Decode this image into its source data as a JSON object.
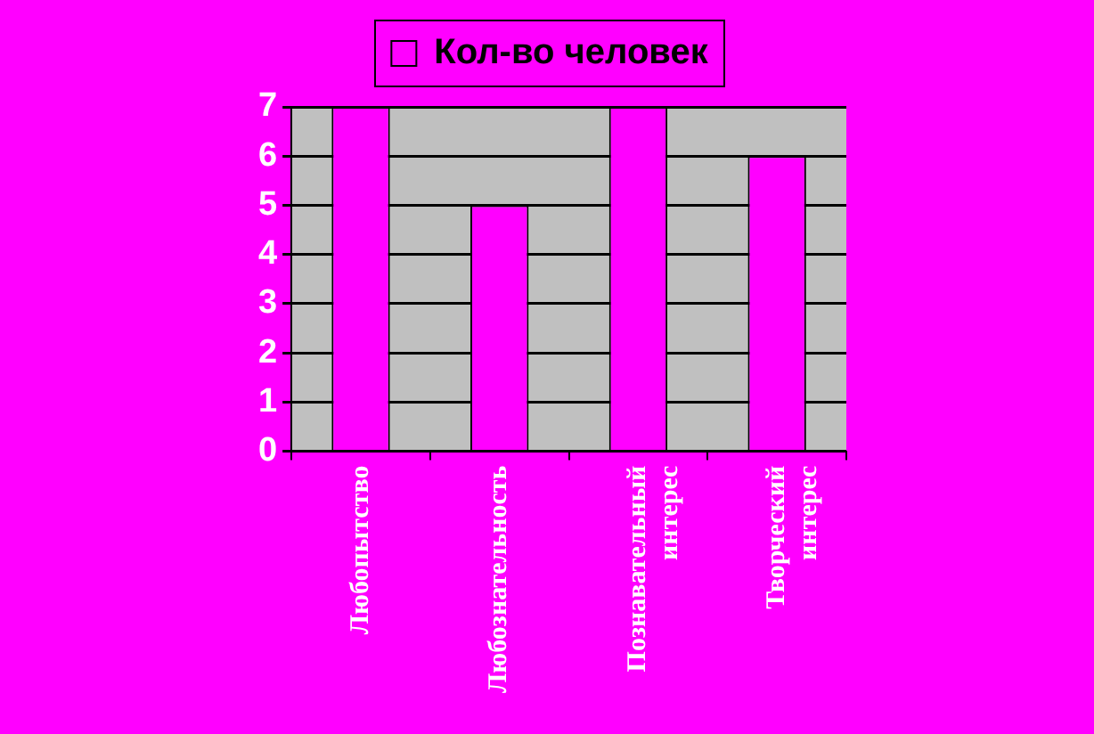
{
  "chart_data": {
    "type": "bar",
    "categories": [
      "Любопытство",
      "Любознательность",
      "Познавательный интерес",
      "Творческий интерес"
    ],
    "series": [
      {
        "name": "Кол-во человек",
        "color": "#ff00ff",
        "values": [
          7,
          5,
          7,
          6
        ]
      }
    ],
    "ylim": [
      0,
      7
    ],
    "yticks": [
      0,
      1,
      2,
      3,
      4,
      5,
      6,
      7
    ],
    "grid": "y",
    "legend": "top"
  }
}
